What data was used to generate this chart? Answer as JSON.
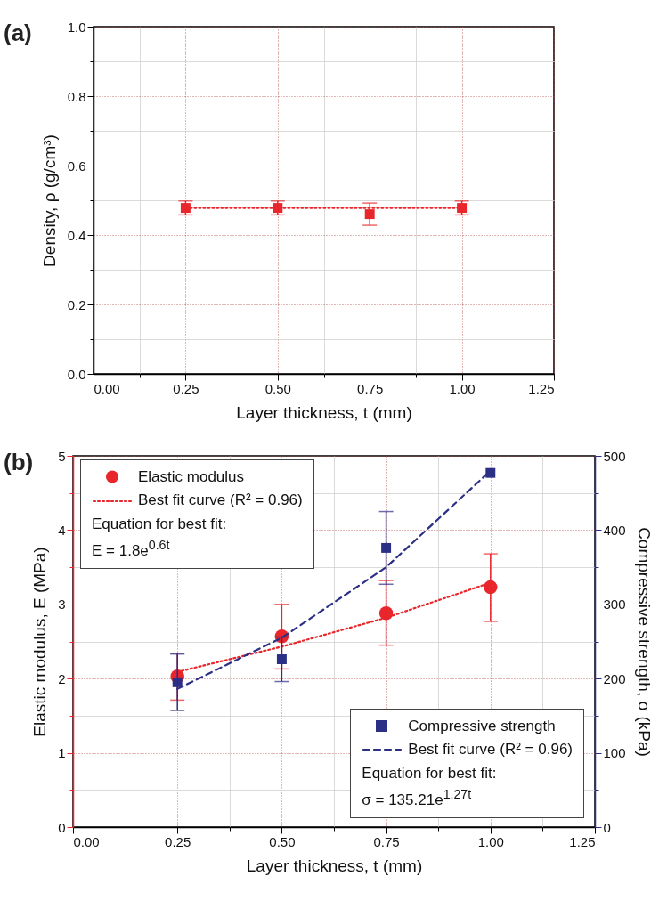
{
  "chart_data": [
    {
      "type": "scatter",
      "title": "(a)",
      "xlabel": "Layer thickness, t (mm)",
      "ylabel": "Density, ρ (g/cm³)",
      "xlim": [
        0,
        1.25
      ],
      "xticks": [
        {
          "value": 0,
          "label": "0.00"
        },
        {
          "value": 0.125,
          "label": null
        },
        0.25,
        {
          "value": 0.375,
          "label": null
        },
        {
          "value": 0.5,
          "label": "0.50"
        },
        {
          "value": 0.625,
          "label": null
        },
        0.75,
        {
          "value": 0.875,
          "label": null
        },
        {
          "value": 1,
          "label": "1.00"
        },
        {
          "value": 1.125,
          "label": null
        },
        1.25
      ],
      "ylim": [
        0,
        1
      ],
      "yticks": [
        {
          "value": 0,
          "label": "0.0"
        },
        {
          "value": 0.1,
          "label": null
        },
        0.2,
        {
          "value": 0.3,
          "label": null
        },
        0.4,
        {
          "value": 0.5,
          "label": null
        },
        0.6,
        {
          "value": 0.7,
          "label": null
        },
        0.8,
        {
          "value": 0.9,
          "label": null
        },
        {
          "value": 1,
          "label": "1.0"
        }
      ],
      "grid": true,
      "series": [
        {
          "color": "#e8262b",
          "marker": "square",
          "x": [
            0.25,
            0.5,
            0.75,
            1
          ],
          "values": [
            0.478,
            0.478,
            0.46,
            0.478
          ],
          "errors": [
            0.02,
            0.02,
            0.032,
            0.02
          ]
        },
        {
          "type": "line",
          "color": "#e8262b",
          "line_style": "dotted",
          "x": [
            0.25,
            1
          ],
          "values": [
            0.478,
            0.478
          ]
        }
      ]
    },
    {
      "type": "scatter",
      "title": "(b)",
      "xlabel": "Layer thickness, t (mm)",
      "ylabel": "Elastic modulus, E (MPa)",
      "y2label": "Compressive strength, σ (kPa)",
      "xlim": [
        0,
        1.25
      ],
      "xticks": [
        {
          "value": 0,
          "label": "0.00"
        },
        {
          "value": 0.125,
          "label": null
        },
        0.25,
        {
          "value": 0.375,
          "label": null
        },
        {
          "value": 0.5,
          "label": "0.50"
        },
        {
          "value": 0.625,
          "label": null
        },
        0.75,
        {
          "value": 0.875,
          "label": null
        },
        {
          "value": 1,
          "label": "1.00"
        },
        {
          "value": 1.125,
          "label": null
        },
        1.25
      ],
      "ylim": [
        0,
        5
      ],
      "yticks": [
        0,
        {
          "value": 0.5,
          "label": null
        },
        1,
        {
          "value": 1.5,
          "label": null
        },
        2,
        {
          "value": 2.5,
          "label": null
        },
        3,
        {
          "value": 3.5,
          "label": null
        },
        4,
        {
          "value": 4.5,
          "label": null
        },
        5
      ],
      "y2lim": [
        0,
        500
      ],
      "y2ticks": [
        0,
        {
          "value": 50,
          "label": null
        },
        100,
        {
          "value": 150,
          "label": null
        },
        200,
        {
          "value": 250,
          "label": null
        },
        300,
        {
          "value": 350,
          "label": null
        },
        400,
        {
          "value": 450,
          "label": null
        },
        500
      ],
      "grid": true,
      "legend": "top left",
      "annotations": [
        "Equation for best fit:",
        "E = 1.8e$^{0.6t}$",
        "Equation for best fit:",
        "σ = 135.21e$^{1.27t}$"
      ],
      "series": [
        {
          "name": "Elastic modulus",
          "color": "#e8262b",
          "marker": "circle",
          "x": [
            0.25,
            0.5,
            0.75,
            1
          ],
          "values": [
            2.03,
            2.57,
            2.88,
            3.23
          ],
          "errors": [
            [
              1.71,
              2.34
            ],
            [
              2.13,
              3.0
            ],
            [
              2.45,
              3.32
            ],
            [
              2.77,
              3.68
            ]
          ]
        },
        {
          "name": "Best fit curve (R² = 0.96)",
          "type": "line",
          "color": "#e8262b",
          "line_style": "dotted",
          "x": [
            0.25,
            0.5,
            0.75,
            1
          ],
          "values": [
            2.09,
            2.43,
            2.82,
            3.29
          ]
        },
        {
          "name": "Compressive strength",
          "axis": "y2",
          "color": "#2b2f86",
          "marker": "square",
          "x": [
            0.25,
            0.5,
            0.75,
            1
          ],
          "values": [
            195,
            226,
            376,
            477
          ],
          "errors": [
            [
              157,
              233
            ],
            [
              196,
              256
            ],
            [
              327,
              425
            ],
            null
          ]
        },
        {
          "name": "Best fit curve (R² = 0.96)",
          "type": "line",
          "axis": "y2",
          "color": "#2b2f86",
          "line_style": "dashed",
          "x": [
            0.25,
            0.5,
            0.75,
            1
          ],
          "values": [
            186,
            255,
            350,
            480
          ]
        }
      ]
    }
  ]
}
